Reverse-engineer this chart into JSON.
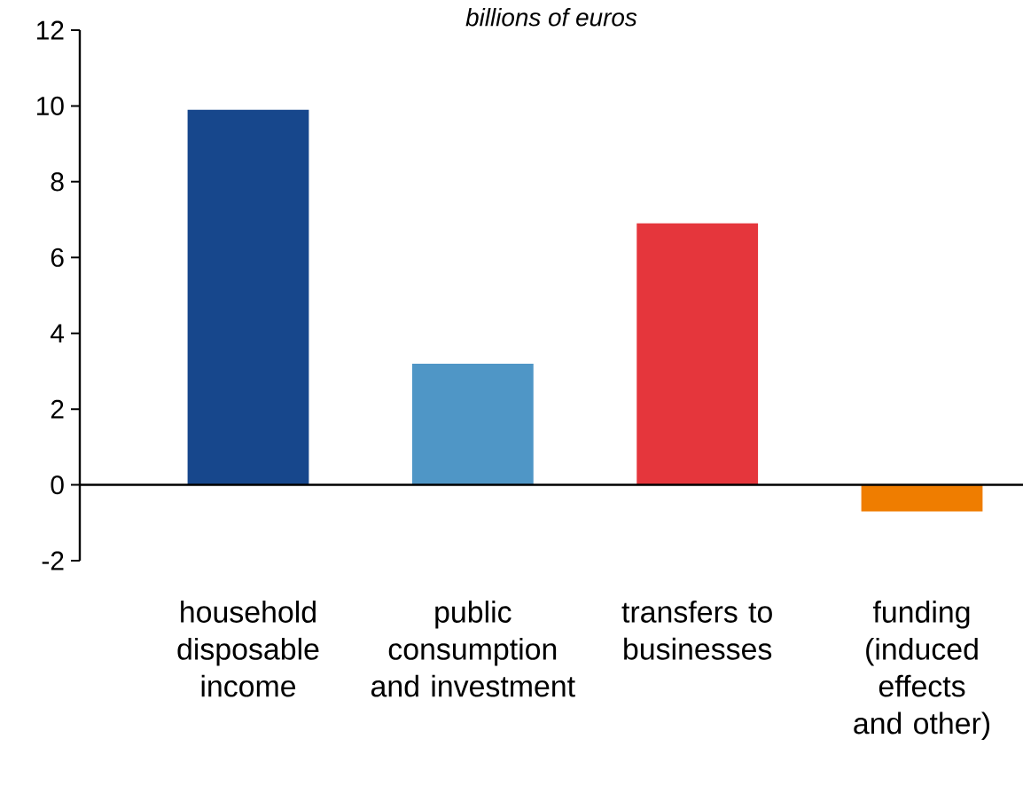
{
  "chart_data": {
    "type": "bar",
    "subtitle": "billions of euros",
    "categories": [
      "household disposable income",
      "public consumption and investment",
      "transfers to businesses",
      "funding (induced effects and other)"
    ],
    "values": [
      9.9,
      3.2,
      6.9,
      -0.7
    ],
    "colors": [
      "#17478c",
      "#4f96c6",
      "#e5363c",
      "#ef7d00"
    ],
    "ylim": [
      -2,
      12
    ],
    "yticks": [
      -2,
      0,
      2,
      4,
      6,
      8,
      10,
      12
    ]
  }
}
